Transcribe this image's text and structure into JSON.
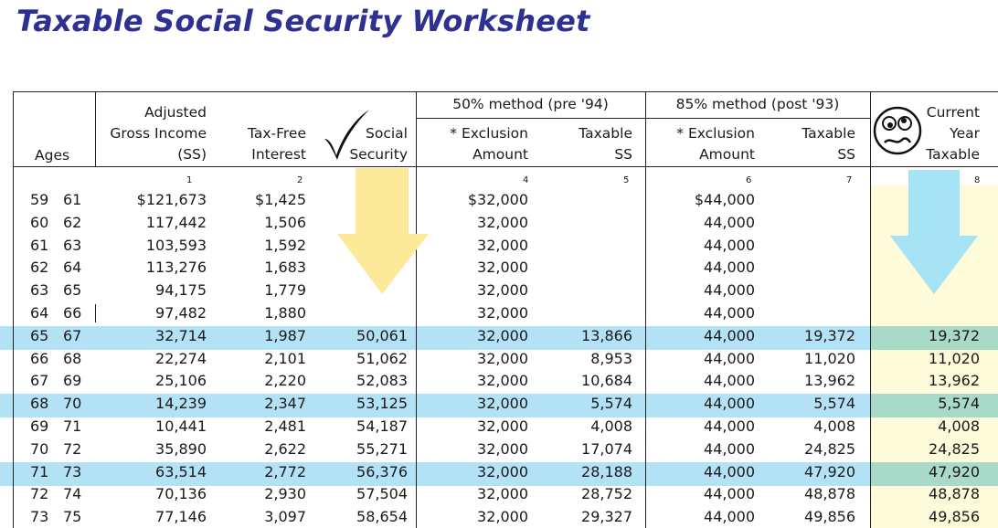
{
  "title": "Taxable Social Security Worksheet",
  "colors": {
    "title": "#2e3192",
    "highlight_row": "#b3e1f5",
    "yellow_arrow": "#fde99a",
    "blue_arrow": "#a6e4f5"
  },
  "headers": {
    "ages": "Ages",
    "agi": [
      "Adjusted",
      "Gross Income",
      "(SS)"
    ],
    "taxfree": [
      "Tax-Free",
      "Interest"
    ],
    "social": [
      "Social",
      "Security"
    ],
    "group50": "50% method (pre '94)",
    "group85": "85% method (post '93)",
    "excl50": [
      "* Exclusion",
      "Amount"
    ],
    "tax50": [
      "Taxable",
      "SS"
    ],
    "excl85": [
      "* Exclusion",
      "Amount"
    ],
    "tax85": [
      "Taxable",
      "SS"
    ],
    "current": [
      "Current",
      "Year",
      "Taxable"
    ]
  },
  "column_numbers": [
    "1",
    "2",
    "4",
    "5",
    "6",
    "7",
    "8"
  ],
  "icons": {
    "checkmark": "checkmark-icon",
    "face": "worried-face-icon"
  },
  "rows": [
    {
      "a1": "59",
      "a2": "61",
      "agi": "$121,673",
      "tf": "$1,425",
      "ss": "",
      "e50": "$32,000",
      "t50": "",
      "e85": "$44,000",
      "t85": "",
      "cur": ""
    },
    {
      "a1": "60",
      "a2": "62",
      "agi": "117,442",
      "tf": "1,506",
      "ss": "",
      "e50": "32,000",
      "t50": "",
      "e85": "44,000",
      "t85": "",
      "cur": ""
    },
    {
      "a1": "61",
      "a2": "63",
      "agi": "103,593",
      "tf": "1,592",
      "ss": "",
      "e50": "32,000",
      "t50": "",
      "e85": "44,000",
      "t85": "",
      "cur": ""
    },
    {
      "a1": "62",
      "a2": "64",
      "agi": "113,276",
      "tf": "1,683",
      "ss": "",
      "e50": "32,000",
      "t50": "",
      "e85": "44,000",
      "t85": "",
      "cur": ""
    },
    {
      "a1": "63",
      "a2": "65",
      "agi": "94,175",
      "tf": "1,779",
      "ss": "",
      "e50": "32,000",
      "t50": "",
      "e85": "44,000",
      "t85": "",
      "cur": ""
    },
    {
      "a1": "64",
      "a2": "66",
      "agi": "97,482",
      "tf": "1,880",
      "ss": "",
      "e50": "32,000",
      "t50": "",
      "e85": "44,000",
      "t85": "",
      "cur": ""
    },
    {
      "a1": "65",
      "a2": "67",
      "agi": "32,714",
      "tf": "1,987",
      "ss": "50,061",
      "e50": "32,000",
      "t50": "13,866",
      "e85": "44,000",
      "t85": "19,372",
      "cur": "19,372",
      "hl": true
    },
    {
      "a1": "66",
      "a2": "68",
      "agi": "22,274",
      "tf": "2,101",
      "ss": "51,062",
      "e50": "32,000",
      "t50": "8,953",
      "e85": "44,000",
      "t85": "11,020",
      "cur": "11,020"
    },
    {
      "a1": "67",
      "a2": "69",
      "agi": "25,106",
      "tf": "2,220",
      "ss": "52,083",
      "e50": "32,000",
      "t50": "10,684",
      "e85": "44,000",
      "t85": "13,962",
      "cur": "13,962"
    },
    {
      "a1": "68",
      "a2": "70",
      "agi": "14,239",
      "tf": "2,347",
      "ss": "53,125",
      "e50": "32,000",
      "t50": "5,574",
      "e85": "44,000",
      "t85": "5,574",
      "cur": "5,574",
      "hl": true
    },
    {
      "a1": "69",
      "a2": "71",
      "agi": "10,441",
      "tf": "2,481",
      "ss": "54,187",
      "e50": "32,000",
      "t50": "4,008",
      "e85": "44,000",
      "t85": "4,008",
      "cur": "4,008"
    },
    {
      "a1": "70",
      "a2": "72",
      "agi": "35,890",
      "tf": "2,622",
      "ss": "55,271",
      "e50": "32,000",
      "t50": "17,074",
      "e85": "44,000",
      "t85": "24,825",
      "cur": "24,825"
    },
    {
      "a1": "71",
      "a2": "73",
      "agi": "63,514",
      "tf": "2,772",
      "ss": "56,376",
      "e50": "32,000",
      "t50": "28,188",
      "e85": "44,000",
      "t85": "47,920",
      "cur": "47,920",
      "hl": true
    },
    {
      "a1": "72",
      "a2": "74",
      "agi": "70,136",
      "tf": "2,930",
      "ss": "57,504",
      "e50": "32,000",
      "t50": "28,752",
      "e85": "44,000",
      "t85": "48,878",
      "cur": "48,878"
    },
    {
      "a1": "73",
      "a2": "75",
      "agi": "77,146",
      "tf": "3,097",
      "ss": "58,654",
      "e50": "32,000",
      "t50": "29,327",
      "e85": "44,000",
      "t85": "49,856",
      "cur": "49,856"
    }
  ]
}
